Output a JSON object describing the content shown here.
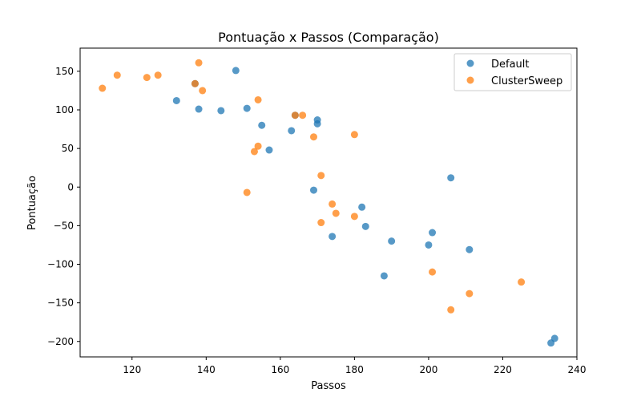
{
  "chart_data": {
    "type": "scatter",
    "title": "Pontuação x Passos (Comparação)",
    "xlabel": "Passos",
    "ylabel": "Pontuação",
    "xlim": [
      106,
      240
    ],
    "ylim": [
      -220,
      180
    ],
    "xticks": [
      120,
      140,
      160,
      180,
      200,
      220,
      240
    ],
    "yticks": [
      -200,
      -150,
      -100,
      -50,
      0,
      50,
      100,
      150
    ],
    "grid": false,
    "legend_position": "upper-right",
    "series": [
      {
        "name": "Default",
        "color": "#1f77b4",
        "points": [
          [
            132,
            112
          ],
          [
            137,
            134
          ],
          [
            138,
            101
          ],
          [
            144,
            99
          ],
          [
            148,
            151
          ],
          [
            151,
            102
          ],
          [
            155,
            80
          ],
          [
            157,
            48
          ],
          [
            163,
            73
          ],
          [
            164,
            93
          ],
          [
            170,
            87
          ],
          [
            170,
            82
          ],
          [
            169,
            -4
          ],
          [
            174,
            -64
          ],
          [
            182,
            -26
          ],
          [
            183,
            -51
          ],
          [
            188,
            -115
          ],
          [
            190,
            -70
          ],
          [
            200,
            -75
          ],
          [
            201,
            -59
          ],
          [
            206,
            12
          ],
          [
            211,
            -81
          ],
          [
            233,
            -202
          ],
          [
            234,
            -196
          ]
        ]
      },
      {
        "name": "ClusterSweep",
        "color": "#ff7f0e",
        "points": [
          [
            112,
            128
          ],
          [
            116,
            145
          ],
          [
            124,
            142
          ],
          [
            127,
            145
          ],
          [
            137,
            134
          ],
          [
            138,
            161
          ],
          [
            139,
            125
          ],
          [
            151,
            -7
          ],
          [
            153,
            46
          ],
          [
            154,
            53
          ],
          [
            154,
            113
          ],
          [
            164,
            93
          ],
          [
            166,
            93
          ],
          [
            169,
            65
          ],
          [
            171,
            15
          ],
          [
            171,
            -46
          ],
          [
            174,
            -22
          ],
          [
            175,
            -34
          ],
          [
            180,
            68
          ],
          [
            180,
            -38
          ],
          [
            201,
            -110
          ],
          [
            206,
            -159
          ],
          [
            211,
            -138
          ],
          [
            225,
            -123
          ]
        ]
      }
    ]
  }
}
